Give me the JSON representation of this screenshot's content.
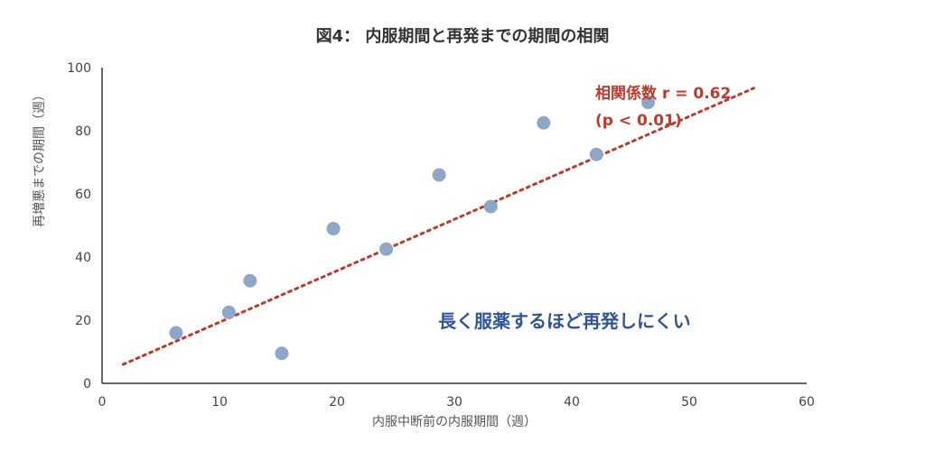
{
  "chart_data": {
    "type": "scatter",
    "title": "図4： 内服期間と再発までの期間の相関",
    "xlabel": "内服中断前の内服期間（週）",
    "ylabel": "再増悪までの期間（週）",
    "xlim": [
      0,
      60
    ],
    "ylim": [
      0,
      100
    ],
    "xticks": [
      "0",
      "10",
      "20",
      "30",
      "40",
      "50",
      "60"
    ],
    "yticks": [
      "0",
      "20",
      "40",
      "60",
      "80",
      "100"
    ],
    "grid": false,
    "points": [
      {
        "x": 6.3,
        "y": 16
      },
      {
        "x": 10.8,
        "y": 22.5
      },
      {
        "x": 12.6,
        "y": 32.5
      },
      {
        "x": 15.3,
        "y": 9.5
      },
      {
        "x": 19.7,
        "y": 49
      },
      {
        "x": 24.2,
        "y": 42.5
      },
      {
        "x": 28.7,
        "y": 66
      },
      {
        "x": 33.1,
        "y": 56
      },
      {
        "x": 37.6,
        "y": 82.5
      },
      {
        "x": 42.1,
        "y": 72.5
      },
      {
        "x": 46.5,
        "y": 89
      }
    ],
    "trendline": {
      "x": [
        1.8,
        55.5
      ],
      "y": [
        6,
        93.5
      ],
      "style": "dotted"
    },
    "annotations": {
      "correlation_line1": "相関係数 r = 0.62",
      "correlation_line2": "(p < 0.01)",
      "note": "長く服薬するほど再発しにくい"
    },
    "colors": {
      "points": "#8ea6c8",
      "trend": "#c0392b",
      "correlation_text": "#c0392b",
      "note_text": "#2f5497",
      "axis": "#333333"
    }
  }
}
